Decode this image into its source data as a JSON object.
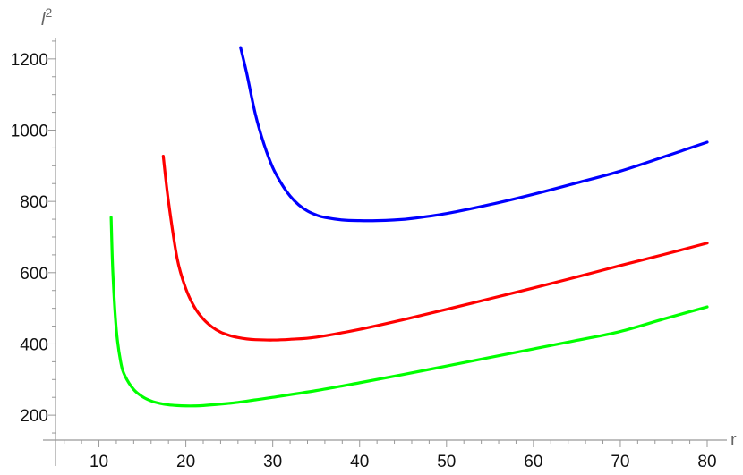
{
  "chart_data": {
    "type": "line",
    "xlabel": "r",
    "ylabel": "l",
    "ylabel_superscript": "2",
    "xlim": [
      5,
      80
    ],
    "ylim": [
      130,
      1290
    ],
    "xticks": [
      10,
      20,
      30,
      40,
      50,
      60,
      70,
      80
    ],
    "yticks": [
      200,
      400,
      600,
      800,
      1000,
      1200
    ],
    "grid": false,
    "legend": "none",
    "series": [
      {
        "color": "#0000ff",
        "x": [
          26.3,
          27,
          28,
          29,
          30,
          31,
          32,
          33,
          34,
          35,
          36,
          38,
          40,
          42,
          44,
          46,
          50,
          55,
          60,
          65,
          70,
          75,
          80
        ],
        "y": [
          1232,
          1160,
          1045,
          960,
          895,
          850,
          815,
          790,
          773,
          762,
          755,
          748,
          746,
          746,
          748,
          752,
          766,
          791,
          820,
          852,
          885,
          925,
          966
        ]
      },
      {
        "color": "#ff0000",
        "x": [
          17.4,
          18,
          19,
          20,
          21,
          22,
          23,
          24,
          25,
          26,
          27,
          28,
          30,
          32,
          35,
          40,
          45,
          50,
          55,
          60,
          65,
          70,
          75,
          80
        ],
        "y": [
          927,
          800,
          640,
          555,
          503,
          470,
          448,
          433,
          424,
          418,
          414,
          412,
          411,
          413,
          419,
          441,
          468,
          497,
          527,
          557,
          588,
          620,
          651,
          683
        ]
      },
      {
        "color": "#00ff00",
        "x": [
          11.4,
          11.6,
          12,
          12.5,
          13,
          14,
          15,
          16,
          17,
          18,
          19,
          20,
          21,
          22,
          24,
          26,
          28,
          30,
          35,
          40,
          45,
          50,
          55,
          60,
          65,
          70,
          75,
          80
        ],
        "y": [
          755,
          600,
          440,
          350,
          310,
          272,
          252,
          240,
          233,
          229,
          227,
          226,
          226,
          227,
          231,
          236,
          243,
          250,
          269,
          291,
          314,
          338,
          362,
          386,
          410,
          435,
          470,
          504
        ]
      }
    ]
  }
}
